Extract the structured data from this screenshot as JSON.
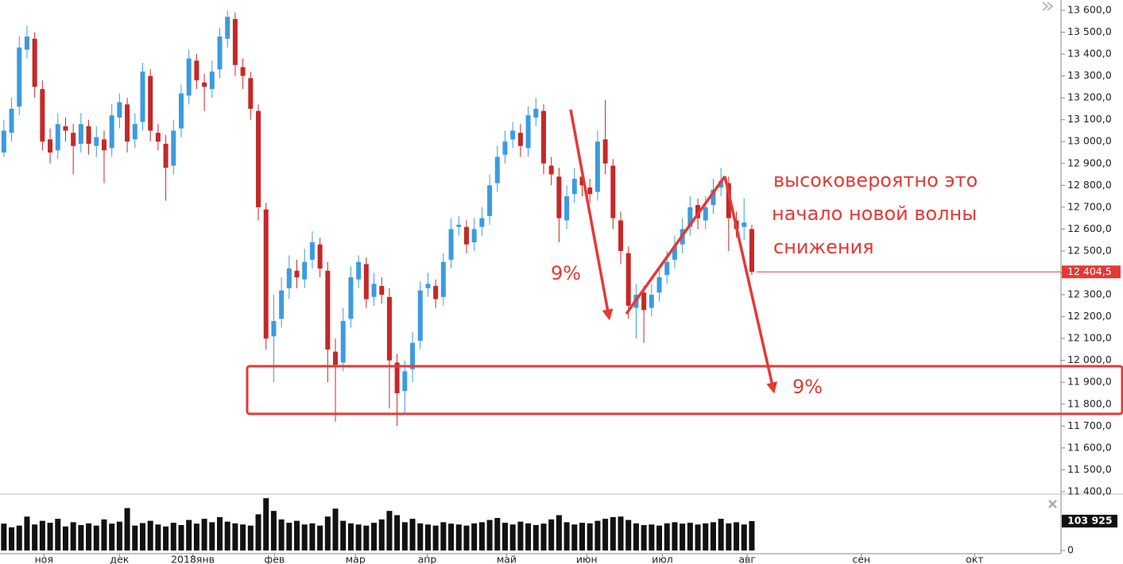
{
  "chart_data": {
    "type": "candlestick",
    "up_color": "#3c9be0",
    "down_color": "#c62828",
    "open": [
      12950,
      13040,
      13160,
      13420,
      13470,
      13240,
      13010,
      12960,
      13070,
      13040,
      12990,
      13070,
      12980,
      13010,
      12970,
      13110,
      13170,
      13010,
      13090,
      13300,
      13040,
      12990,
      12890,
      13060,
      13210,
      13370,
      13270,
      13240,
      13330,
      13470,
      13560,
      13340,
      13290,
      13140,
      12690,
      12110,
      12190,
      12330,
      12410,
      12370,
      12460,
      12530,
      12410,
      12040,
      11990,
      12190,
      12370,
      12440,
      12290,
      12340,
      12290,
      11990,
      11860,
      11960,
      12090,
      12330,
      12340,
      12290,
      12460,
      12610,
      12610,
      12540,
      12610,
      12660,
      12810,
      12940,
      13010,
      13040,
      12970,
      13110,
      13140,
      12890,
      12840,
      12640,
      12760,
      12840,
      12790,
      12770,
      13010,
      12890,
      12640,
      12490,
      12240,
      12310,
      12240,
      12310,
      12390,
      12460,
      12530,
      12610,
      12710,
      12640,
      12710,
      12790,
      12810,
      12640,
      12610,
      12600
    ],
    "high": [
      13100,
      13200,
      13480,
      13530,
      13500,
      13280,
      13060,
      13130,
      13110,
      13080,
      13130,
      13100,
      13070,
      13050,
      13170,
      13220,
      13200,
      13130,
      13360,
      13330,
      13080,
      13030,
      13100,
      13260,
      13420,
      13400,
      13310,
      13370,
      13520,
      13600,
      13590,
      13380,
      13320,
      13170,
      12720,
      12300,
      12380,
      12480,
      12460,
      12510,
      12590,
      12560,
      12450,
      12100,
      12240,
      12430,
      12480,
      12470,
      12400,
      12380,
      12330,
      12030,
      12000,
      12130,
      12360,
      12400,
      12370,
      12490,
      12650,
      12660,
      12640,
      12650,
      12700,
      12850,
      12980,
      13050,
      13090,
      13080,
      13160,
      13200,
      13170,
      12930,
      12880,
      12800,
      12880,
      12870,
      12830,
      13050,
      13190,
      12920,
      12680,
      12520,
      12350,
      12340,
      12350,
      12430,
      12500,
      12570,
      12650,
      12750,
      12740,
      12750,
      12830,
      12880,
      12840,
      12680,
      12740,
      12620
    ],
    "low": [
      12930,
      13000,
      13120,
      13380,
      13200,
      12960,
      12900,
      12920,
      13000,
      12850,
      12950,
      12940,
      12930,
      12810,
      12930,
      13060,
      12950,
      12970,
      13050,
      13000,
      12960,
      12730,
      12850,
      13020,
      13170,
      13240,
      13140,
      13200,
      13290,
      13430,
      13300,
      13240,
      13100,
      12640,
      12050,
      11900,
      12150,
      12280,
      12330,
      12330,
      12420,
      12380,
      11900,
      11720,
      11950,
      12150,
      12330,
      12240,
      12250,
      12260,
      11780,
      11700,
      11760,
      11900,
      12050,
      12290,
      12240,
      12250,
      12420,
      12570,
      12490,
      12500,
      12570,
      12620,
      12770,
      12900,
      12970,
      12930,
      12930,
      13070,
      12850,
      12800,
      12540,
      12600,
      12720,
      12750,
      12720,
      12730,
      12850,
      12600,
      12440,
      12190,
      12100,
      12080,
      12200,
      12270,
      12350,
      12420,
      12490,
      12570,
      12600,
      12600,
      12670,
      12750,
      12500,
      12560,
      12550,
      12390
    ],
    "close": [
      13050,
      13150,
      13430,
      13480,
      13250,
      13000,
      12950,
      13080,
      13050,
      12980,
      13080,
      12990,
      13020,
      12960,
      13120,
      13180,
      13000,
      13080,
      13320,
      13050,
      13000,
      12880,
      13050,
      13220,
      13380,
      13280,
      13250,
      13320,
      13480,
      13570,
      13350,
      13300,
      13150,
      12700,
      12100,
      12180,
      12320,
      12420,
      12380,
      12450,
      12540,
      12420,
      12050,
      11980,
      12180,
      12380,
      12450,
      12280,
      12350,
      12300,
      12000,
      11850,
      11950,
      12080,
      12320,
      12350,
      12280,
      12450,
      12600,
      12620,
      12530,
      12600,
      12650,
      12800,
      12930,
      13000,
      13050,
      12980,
      13120,
      13150,
      12900,
      12850,
      12650,
      12750,
      12830,
      12800,
      12760,
      13000,
      12900,
      12650,
      12500,
      12250,
      12300,
      12230,
      12300,
      12380,
      12450,
      12520,
      12600,
      12700,
      12650,
      12700,
      12780,
      12820,
      12650,
      12600,
      12630,
      12404.5
    ],
    "last_label": "12 404,5",
    "ylim": [
      11389,
      13647
    ],
    "yticks": [
      {
        "value": 11400,
        "label": "11 400,0"
      },
      {
        "value": 11500,
        "label": "11 500,0"
      },
      {
        "value": 11600,
        "label": "11 600,0"
      },
      {
        "value": 11700,
        "label": "11 700,0"
      },
      {
        "value": 11800,
        "label": "11 800,0"
      },
      {
        "value": 11900,
        "label": "11 900,0"
      },
      {
        "value": 12000,
        "label": "12 000,0"
      },
      {
        "value": 12100,
        "label": "12 100,0"
      },
      {
        "value": 12200,
        "label": "12 200,0"
      },
      {
        "value": 12300,
        "label": "12 300,0"
      },
      {
        "value": 12400,
        "label": "12 400,0"
      },
      {
        "value": 12500,
        "label": "12 500,0"
      },
      {
        "value": 12600,
        "label": "12 600,0"
      },
      {
        "value": 12700,
        "label": "12 700,0"
      },
      {
        "value": 12800,
        "label": "12 800,0"
      },
      {
        "value": 12900,
        "label": "12 900,0"
      },
      {
        "value": 13000,
        "label": "13 000,0"
      },
      {
        "value": 13100,
        "label": "13 100,0"
      },
      {
        "value": 13200,
        "label": "13 200,0"
      },
      {
        "value": 13300,
        "label": "13 300,0"
      },
      {
        "value": 13400,
        "label": "13 400,0"
      },
      {
        "value": 13500,
        "label": "13 500,0"
      },
      {
        "value": 13600,
        "label": "13 600,0"
      }
    ],
    "xlim": [
      0,
      137.6
    ],
    "xticks": [
      {
        "value": 5.7,
        "label": "ноя"
      },
      {
        "value": 15.5,
        "label": "дек"
      },
      {
        "value": 25,
        "label": "2018янв"
      },
      {
        "value": 35.6,
        "label": "фев"
      },
      {
        "value": 46.1,
        "label": "мар"
      },
      {
        "value": 55.4,
        "label": "апр"
      },
      {
        "value": 65.7,
        "label": "май"
      },
      {
        "value": 76.1,
        "label": "июн"
      },
      {
        "value": 85.9,
        "label": "июл"
      },
      {
        "value": 96.9,
        "label": "авг"
      },
      {
        "value": 111.7,
        "label": "сен"
      },
      {
        "value": 126.4,
        "label": "окт"
      }
    ],
    "volume": {
      "color": "#111111",
      "values": [
        95000,
        82000,
        88000,
        120000,
        92000,
        105000,
        98000,
        112000,
        85000,
        100000,
        90000,
        96000,
        88000,
        110000,
        95000,
        102000,
        150000,
        88000,
        97000,
        105000,
        92000,
        85000,
        98000,
        90000,
        108000,
        95000,
        112000,
        100000,
        118000,
        102000,
        96000,
        92000,
        88000,
        128000,
        185000,
        140000,
        110000,
        98000,
        105000,
        92000,
        96000,
        88000,
        120000,
        148000,
        105000,
        96000,
        92000,
        88000,
        98000,
        110000,
        140000,
        125000,
        100000,
        112000,
        96000,
        92000,
        88000,
        100000,
        95000,
        92000,
        88000,
        96000,
        100000,
        108000,
        115000,
        98000,
        92000,
        102000,
        96000,
        90000,
        95000,
        110000,
        125000,
        100000,
        92000,
        98000,
        96000,
        105000,
        112000,
        118000,
        120000,
        108000,
        96000,
        90000,
        92000,
        88000,
        96000,
        100000,
        95000,
        98000,
        92000,
        96000,
        100000,
        112000,
        96000,
        100000,
        92000,
        103925
      ],
      "ylim": [
        0,
        191000
      ],
      "yticks": [
        0,
        {
          "value": 103925,
          "label": "103 925"
        }
      ]
    },
    "annotations": [
      "высоковероятно это",
      "начало новой волны",
      "снижения",
      "9%",
      "9%"
    ]
  }
}
